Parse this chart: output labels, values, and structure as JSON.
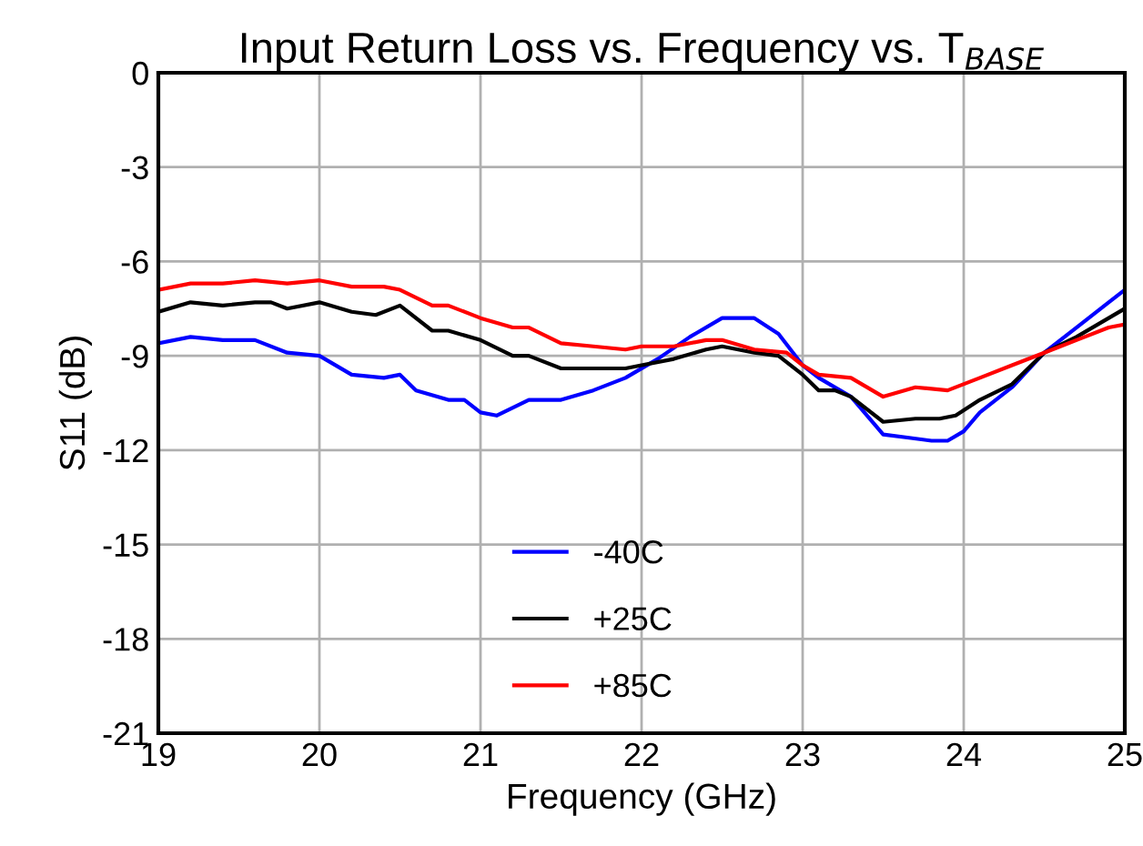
{
  "chart_data": {
    "type": "line",
    "title": "Input Return Loss vs. Frequency vs. T$_{BASE}$",
    "xlabel": "Frequency (GHz)",
    "ylabel": "S11 (dB)",
    "xlim": [
      19,
      25
    ],
    "xticks": [
      19,
      20,
      21,
      22,
      23,
      24,
      25
    ],
    "ylim": [
      -21,
      0
    ],
    "yticks": [
      -21,
      -18,
      -15,
      -12,
      -9,
      -6,
      -3,
      0
    ],
    "grid": true,
    "legend": "bottom",
    "marker": "none",
    "line_style": "solid",
    "series": [
      {
        "name": "-40C",
        "color": "#0000ff",
        "x": [
          19,
          19.2,
          19.4,
          19.6,
          19.8,
          20,
          20.2,
          20.4,
          20.5,
          20.6,
          20.8,
          20.9,
          21,
          21.1,
          21.3,
          21.5,
          21.7,
          21.9,
          22.1,
          22.3,
          22.5,
          22.7,
          22.85,
          23,
          23.1,
          23.3,
          23.5,
          23.65,
          23.8,
          23.9,
          24,
          24.1,
          24.3,
          24.5,
          24.7,
          24.9,
          25
        ],
        "values": [
          -8.6,
          -8.4,
          -8.5,
          -8.5,
          -8.9,
          -9.0,
          -9.6,
          -9.7,
          -9.6,
          -10.1,
          -10.4,
          -10.4,
          -10.8,
          -10.9,
          -10.4,
          -10.4,
          -10.1,
          -9.7,
          -9.1,
          -8.4,
          -7.8,
          -7.8,
          -8.3,
          -9.3,
          -9.7,
          -10.3,
          -11.5,
          -11.6,
          -11.7,
          -11.7,
          -11.4,
          -10.8,
          -10.0,
          -8.9,
          -8.1,
          -7.3,
          -6.9
        ]
      },
      {
        "name": "+25C",
        "color": "#000000",
        "x": [
          19,
          19.2,
          19.4,
          19.6,
          19.7,
          19.8,
          20,
          20.2,
          20.35,
          20.5,
          20.7,
          20.8,
          21,
          21.2,
          21.3,
          21.5,
          21.7,
          21.9,
          22,
          22.2,
          22.4,
          22.5,
          22.7,
          22.85,
          23,
          23.1,
          23.2,
          23.3,
          23.5,
          23.7,
          23.85,
          23.95,
          24.1,
          24.3,
          24.5,
          24.7,
          24.9,
          25
        ],
        "values": [
          -7.6,
          -7.3,
          -7.4,
          -7.3,
          -7.3,
          -7.5,
          -7.3,
          -7.6,
          -7.7,
          -7.4,
          -8.2,
          -8.2,
          -8.5,
          -9.0,
          -9.0,
          -9.4,
          -9.4,
          -9.4,
          -9.3,
          -9.1,
          -8.8,
          -8.7,
          -8.9,
          -9.0,
          -9.6,
          -10.1,
          -10.1,
          -10.3,
          -11.1,
          -11.0,
          -11.0,
          -10.9,
          -10.4,
          -9.9,
          -8.9,
          -8.4,
          -7.8,
          -7.5
        ]
      },
      {
        "name": "+85C",
        "color": "#ff0000",
        "x": [
          19,
          19.2,
          19.4,
          19.6,
          19.8,
          20,
          20.2,
          20.4,
          20.5,
          20.7,
          20.8,
          21,
          21.2,
          21.3,
          21.5,
          21.7,
          21.9,
          22,
          22.2,
          22.4,
          22.5,
          22.7,
          22.9,
          23,
          23.1,
          23.3,
          23.5,
          23.7,
          23.9,
          24.1,
          24.3,
          24.5,
          24.7,
          24.9,
          25
        ],
        "values": [
          -6.9,
          -6.7,
          -6.7,
          -6.6,
          -6.7,
          -6.6,
          -6.8,
          -6.8,
          -6.9,
          -7.4,
          -7.4,
          -7.8,
          -8.1,
          -8.1,
          -8.6,
          -8.7,
          -8.8,
          -8.7,
          -8.7,
          -8.5,
          -8.5,
          -8.8,
          -8.9,
          -9.3,
          -9.6,
          -9.7,
          -10.3,
          -10.0,
          -10.1,
          -9.7,
          -9.3,
          -8.9,
          -8.5,
          -8.1,
          -8.0
        ]
      }
    ]
  }
}
